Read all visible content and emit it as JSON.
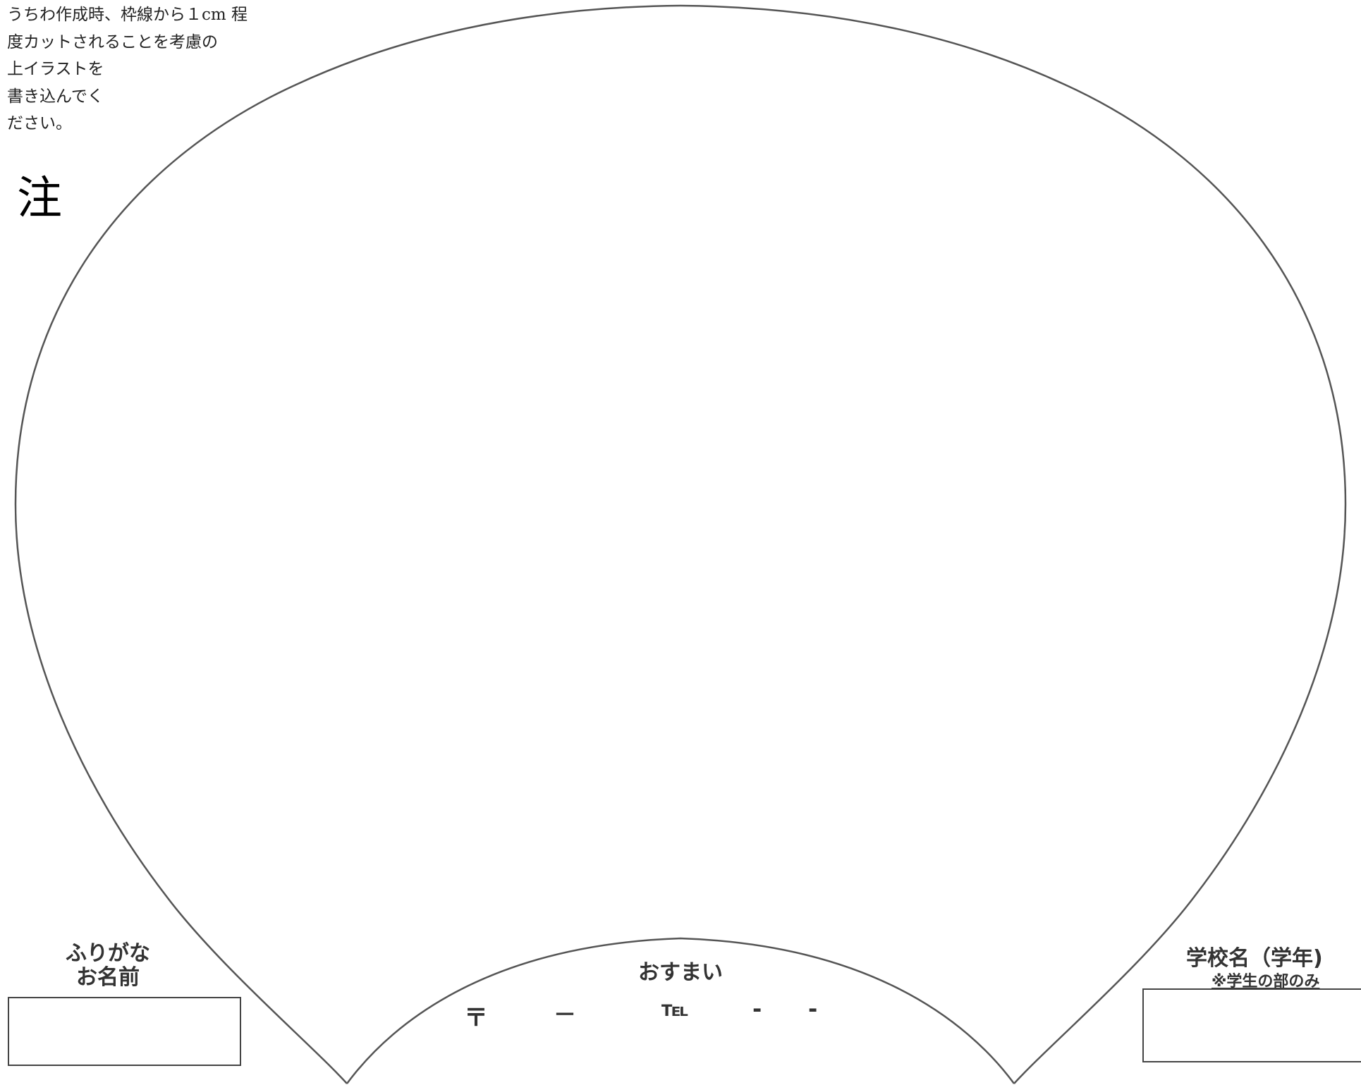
{
  "note": {
    "lines": [
      "うちわ作成時、枠線から１cm 程",
      "度カットされることを考慮の",
      "上イラストを",
      "書き込んでく",
      "ださい。"
    ],
    "mark": "注"
  },
  "name_field": {
    "furigana_label": "ふりがな",
    "name_label": "お名前",
    "value": ""
  },
  "address_field": {
    "label": "おすまい",
    "postal_mark": "〒",
    "postal_dash": "－",
    "tel_label": "℡",
    "tel_dash_1": "-",
    "tel_dash_2": "-"
  },
  "school_field": {
    "label": "学校名（学年)",
    "note": "※学生の部のみ",
    "value": ""
  },
  "colors": {
    "outline": "#555555",
    "text": "#222222"
  }
}
